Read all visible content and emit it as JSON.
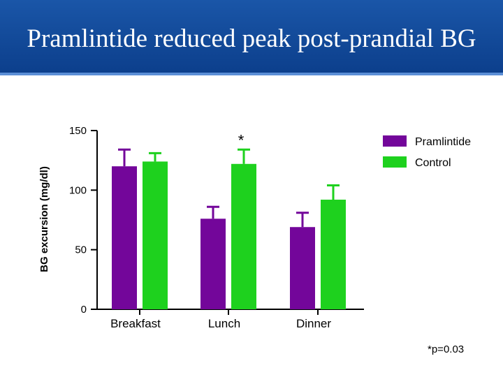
{
  "slide": {
    "title": "Pramlintide reduced peak post-prandial BG",
    "footnote": "*p=0.03"
  },
  "colors": {
    "header": "#0c3f8c",
    "pramlintide": "#73069a",
    "control": "#1ed11e"
  },
  "chart_data": {
    "type": "bar",
    "title": "",
    "xlabel": "",
    "ylabel": "BG excursion (mg/dl)",
    "ylim": [
      0,
      150
    ],
    "yticks": [
      0,
      50,
      100,
      150
    ],
    "categories": [
      "Breakfast",
      "Lunch",
      "Dinner"
    ],
    "series": [
      {
        "name": "Pramlintide",
        "values": [
          120,
          76,
          69
        ],
        "errors": [
          14,
          10,
          12
        ],
        "color": "#73069a"
      },
      {
        "name": "Control",
        "values": [
          124,
          122,
          92
        ],
        "errors": [
          7,
          12,
          12
        ],
        "color": "#1ed11e"
      }
    ],
    "annotations": [
      {
        "text": "*",
        "category": "Lunch",
        "series": "Control"
      }
    ],
    "legend": "top-right"
  }
}
